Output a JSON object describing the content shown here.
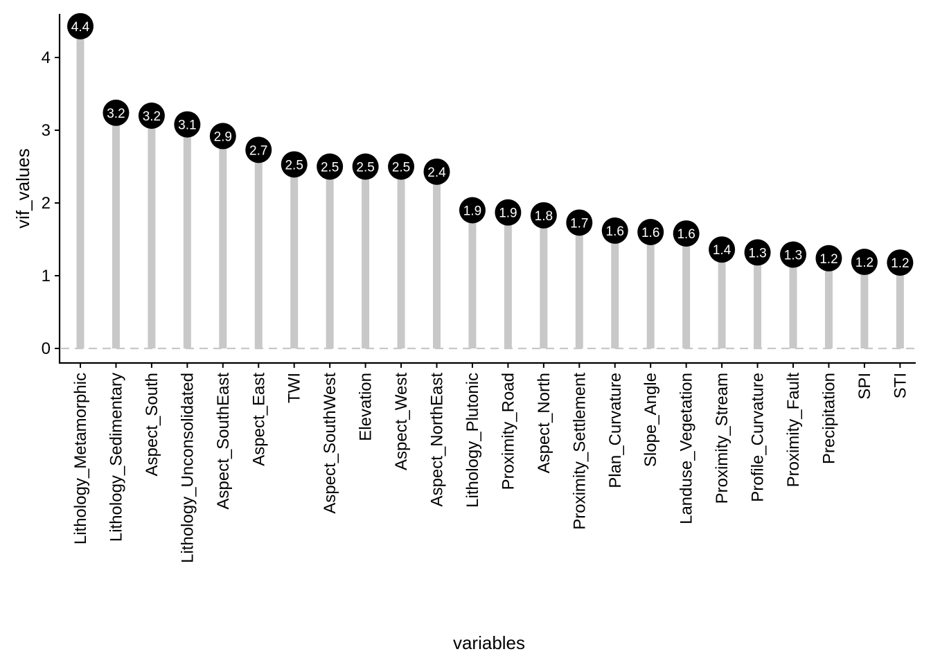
{
  "chart_data": {
    "type": "lollipop",
    "xlabel": "variables",
    "ylabel": "vif_values",
    "ylim": [
      -0.2,
      4.6
    ],
    "yticks": [
      0,
      1,
      2,
      3,
      4
    ],
    "reference_line": 0,
    "colors": {
      "stem": "#c8c8c8",
      "dot": "#000000",
      "label": "#ffffff",
      "reference": "#c8c8c8"
    },
    "categories": [
      "Lithology_Metamorphic",
      "Lithology_Sedimentary",
      "Aspect_South",
      "Lithology_Unconsolidated",
      "Aspect_SouthEast",
      "Aspect_East",
      "TWI",
      "Aspect_SouthWest",
      "Elevation",
      "Aspect_West",
      "Aspect_NorthEast",
      "Lithology_Plutonic",
      "Proximity_Road",
      "Aspect_North",
      "Proximity_Settlement",
      "Plan_Curvature",
      "Slope_Angle",
      "Landuse_Vegetation",
      "Proximity_Stream",
      "Profile_Curvature",
      "Proximity_Fault",
      "Precipitation",
      "SPI",
      "STI"
    ],
    "values": [
      4.43,
      3.24,
      3.2,
      3.08,
      2.92,
      2.73,
      2.53,
      2.5,
      2.5,
      2.5,
      2.43,
      1.9,
      1.87,
      1.83,
      1.73,
      1.62,
      1.6,
      1.58,
      1.36,
      1.32,
      1.29,
      1.24,
      1.19,
      1.18
    ],
    "labels": [
      "4.4",
      "3.2",
      "3.2",
      "3.1",
      "2.9",
      "2.7",
      "2.5",
      "2.5",
      "2.5",
      "2.5",
      "2.4",
      "1.9",
      "1.9",
      "1.8",
      "1.7",
      "1.6",
      "1.6",
      "1.6",
      "1.4",
      "1.3",
      "1.3",
      "1.2",
      "1.2",
      "1.2"
    ]
  }
}
